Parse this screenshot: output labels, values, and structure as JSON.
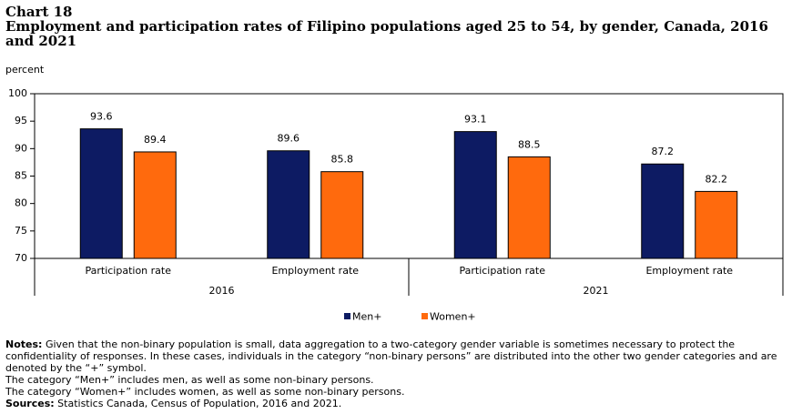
{
  "chart_data": {
    "type": "bar",
    "label": "Chart 18",
    "title": "Employment and participation rates of Filipino populations aged 25 to 54, by gender, Canada, 2016 and 2021",
    "y_label": "percent",
    "categories": [
      "Participation rate",
      "Employment rate",
      "Participation rate",
      "Employment rate"
    ],
    "groups": [
      "2016",
      "2021"
    ],
    "series": [
      {
        "name": "Men+",
        "color": "#0d1b63",
        "values": [
          93.6,
          89.6,
          93.1,
          87.2
        ]
      },
      {
        "name": "Women+",
        "color": "#ff6a0d",
        "values": [
          89.4,
          85.8,
          88.5,
          82.2
        ]
      }
    ],
    "ylim": [
      70,
      100
    ],
    "yticks": [
      70,
      75,
      80,
      85,
      90,
      95,
      100
    ],
    "grid": false
  },
  "notes": {
    "label": "Notes:",
    "text": "Given that the non-binary population is small, data aggregation to a two-category gender variable is sometimes necessary to protect the confidentiality of responses. In these cases, individuals in the category “non-binary persons” are distributed into the other two gender categories and are denoted by the “+” symbol.",
    "lines": [
      "The category “Men+” includes men, as well as some non-binary persons.",
      "The category “Women+” includes women, as well as some non-binary persons."
    ]
  },
  "sources": {
    "label": "Sources:",
    "text": "Statistics Canada, Census of Population, 2016 and 2021."
  }
}
